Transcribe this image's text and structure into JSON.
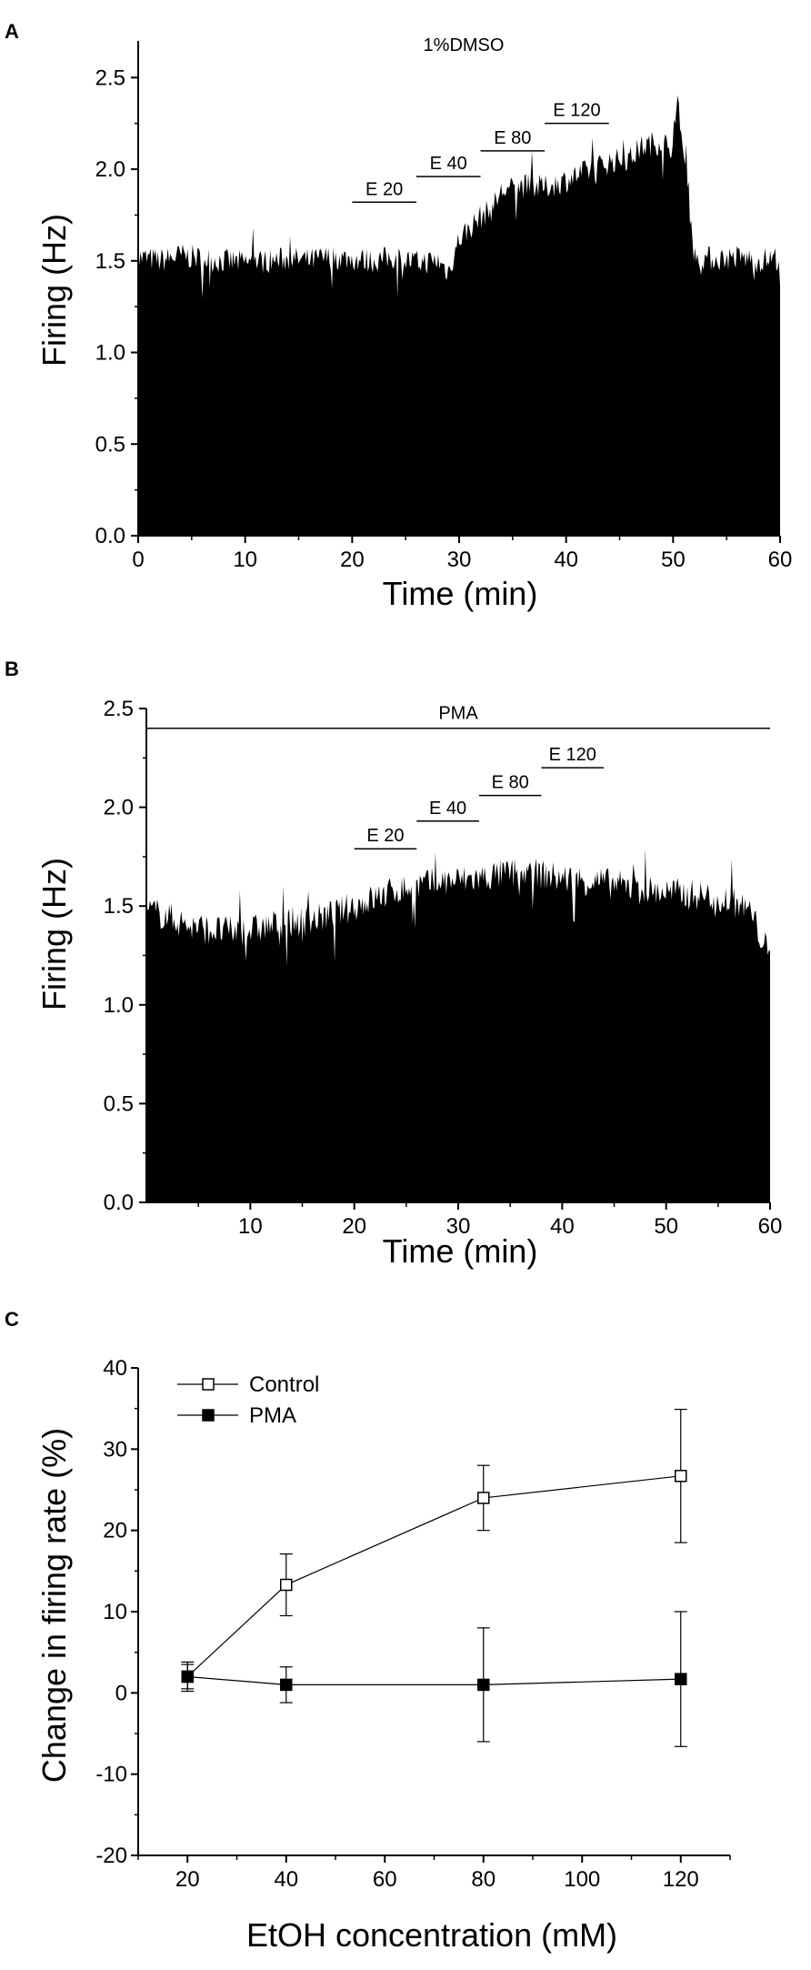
{
  "chart_data": [
    {
      "panel": "A",
      "type": "area",
      "annotation": "1%DMSO",
      "xlabel": "Time (min)",
      "ylabel": "Firing (Hz)",
      "xlim": [
        0,
        60
      ],
      "ylim": [
        0,
        2.7
      ],
      "x_ticks": [
        0,
        10,
        20,
        30,
        40,
        50,
        60
      ],
      "y_ticks": [
        0.0,
        0.5,
        1.0,
        1.5,
        2.0,
        2.5
      ],
      "series": [
        {
          "x": [
            0,
            2,
            4,
            6,
            8,
            10,
            12,
            14,
            16,
            18,
            20,
            22,
            24,
            26,
            28,
            29,
            30,
            31,
            32,
            33,
            34,
            36,
            38,
            40,
            42,
            44,
            46,
            47,
            48,
            49,
            50,
            50.5,
            51,
            51.3,
            51.6,
            52,
            54,
            56,
            58,
            60
          ],
          "values": [
            1.52,
            1.5,
            1.53,
            1.51,
            1.5,
            1.49,
            1.5,
            1.51,
            1.5,
            1.52,
            1.51,
            1.5,
            1.52,
            1.49,
            1.5,
            1.44,
            1.62,
            1.68,
            1.74,
            1.78,
            1.88,
            1.91,
            1.9,
            1.94,
            1.99,
            2.04,
            2.06,
            2.12,
            2.14,
            2.15,
            2.12,
            2.38,
            2.05,
            1.9,
            1.75,
            1.52,
            1.51,
            1.52,
            1.5,
            1.52
          ]
        }
      ],
      "bars": [
        {
          "label": "E 20",
          "x_start": 20,
          "x_end": 26,
          "y": 1.82
        },
        {
          "label": "E 40",
          "x_start": 26,
          "x_end": 32,
          "y": 1.96
        },
        {
          "label": "E 80",
          "x_start": 32,
          "x_end": 38,
          "y": 2.1
        },
        {
          "label": "E 120",
          "x_start": 38,
          "x_end": 44,
          "y": 2.25
        }
      ]
    },
    {
      "panel": "B",
      "type": "area",
      "annotation": "PMA",
      "xlabel": "Time (min)",
      "ylabel": "Firing (Hz)",
      "xlim": [
        0,
        60
      ],
      "ylim": [
        0,
        2.5
      ],
      "x_ticks": [
        10,
        20,
        30,
        40,
        50,
        60
      ],
      "y_ticks": [
        0.0,
        0.5,
        1.0,
        1.5,
        2.0,
        2.5
      ],
      "series": [
        {
          "x": [
            0,
            2,
            4,
            6,
            8,
            10,
            12,
            14,
            16,
            18,
            20,
            22,
            24,
            26,
            28,
            30,
            32,
            34,
            36,
            38,
            40,
            42,
            44,
            46,
            48,
            50,
            52,
            54,
            56,
            58,
            59.5,
            60
          ],
          "values": [
            1.48,
            1.45,
            1.4,
            1.38,
            1.37,
            1.38,
            1.4,
            1.42,
            1.43,
            1.46,
            1.5,
            1.54,
            1.58,
            1.6,
            1.62,
            1.63,
            1.64,
            1.66,
            1.67,
            1.66,
            1.64,
            1.63,
            1.62,
            1.6,
            1.58,
            1.57,
            1.56,
            1.55,
            1.53,
            1.48,
            1.3,
            1.22
          ]
        }
      ],
      "bars": [
        {
          "label": "PMA",
          "x_start": 0,
          "x_end": 60,
          "y": 2.4
        },
        {
          "label": "E 20",
          "x_start": 20,
          "x_end": 26,
          "y": 1.79
        },
        {
          "label": "E 40",
          "x_start": 26,
          "x_end": 32,
          "y": 1.93
        },
        {
          "label": "E 80",
          "x_start": 32,
          "x_end": 38,
          "y": 2.06
        },
        {
          "label": "E 120",
          "x_start": 38,
          "x_end": 44,
          "y": 2.2
        }
      ]
    },
    {
      "panel": "C",
      "type": "line",
      "xlabel": "EtOH concentration (mM)",
      "ylabel": "Change in firing rate (%)",
      "xlim": [
        10,
        130
      ],
      "ylim": [
        -20,
        40
      ],
      "x_ticks": [
        20,
        40,
        60,
        80,
        100,
        120
      ],
      "y_ticks": [
        -20,
        -10,
        0,
        10,
        20,
        30,
        40
      ],
      "x": [
        20,
        40,
        80,
        120
      ],
      "series": [
        {
          "name": "Control",
          "marker": "open-square",
          "values": [
            2.0,
            13.3,
            24.0,
            26.7
          ],
          "errors": [
            1.8,
            3.8,
            4.0,
            8.2
          ]
        },
        {
          "name": "PMA",
          "marker": "filled-square",
          "values": [
            2.0,
            1.0,
            1.0,
            1.7
          ],
          "errors": [
            1.5,
            2.2,
            7.0,
            8.3
          ]
        }
      ]
    }
  ]
}
